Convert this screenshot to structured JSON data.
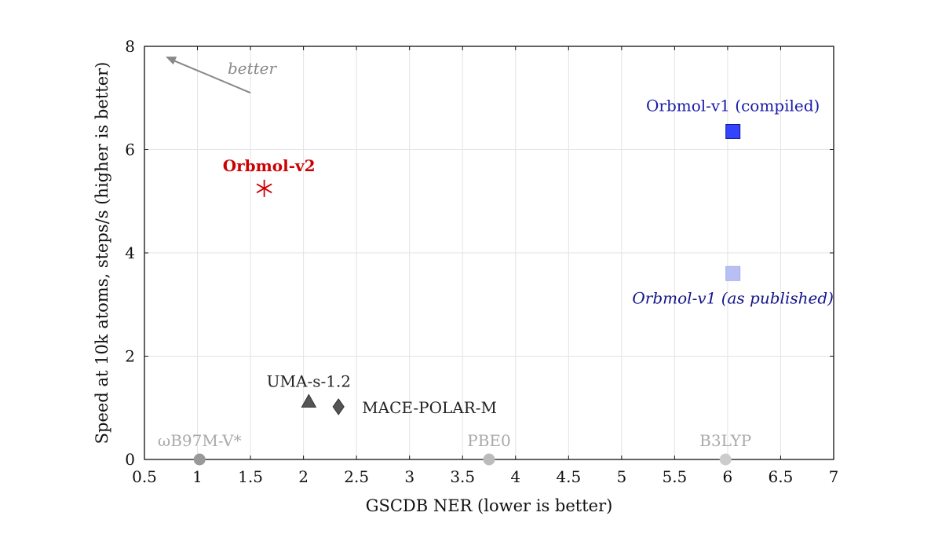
{
  "chart_data": {
    "type": "scatter",
    "title": "",
    "xlabel": "GSCDB NER (lower is better)",
    "ylabel": "Speed at 10k atoms, steps/s (higher is better)",
    "xlim": [
      0.5,
      7
    ],
    "ylim": [
      0,
      8
    ],
    "xticks": [
      0.5,
      1,
      1.5,
      2,
      2.5,
      3,
      3.5,
      4,
      4.5,
      5,
      5.5,
      6,
      6.5,
      7
    ],
    "yticks": [
      0,
      2,
      4,
      6,
      8
    ],
    "grid": true,
    "annotation": {
      "text": "better",
      "from": [
        1.5,
        7.1
      ],
      "to": [
        0.7,
        7.8
      ],
      "color": "#888888"
    },
    "points": [
      {
        "label": "Orbmol-v2",
        "x": 1.63,
        "y": 5.25,
        "marker": "asterisk",
        "color": "#cc0000",
        "label_color": "#cc0000",
        "label_style": "bold"
      },
      {
        "label": "Orbmol-v1 (compiled)",
        "x": 6.05,
        "y": 6.35,
        "marker": "square",
        "color": "#3344ff",
        "label_color": "#1a1aa8",
        "label_style": "normal"
      },
      {
        "label": "Orbmol-v1 (as published)",
        "x": 6.05,
        "y": 3.6,
        "marker": "square",
        "color": "#b8bff5",
        "label_color": "#14148a",
        "label_style": "italic"
      },
      {
        "label": "UMA-s-1.2",
        "x": 2.05,
        "y": 1.12,
        "marker": "triangle",
        "color": "#555555",
        "label_color": "#222222",
        "label_style": "normal"
      },
      {
        "label": "MACE-POLAR-M",
        "x": 2.33,
        "y": 1.02,
        "marker": "diamond",
        "color": "#555555",
        "label_color": "#222222",
        "label_style": "normal"
      },
      {
        "label": "ωB97M-V*",
        "x": 1.02,
        "y": 0,
        "marker": "circle",
        "color": "#999999",
        "label_color": "#aaaaaa",
        "label_style": "normal"
      },
      {
        "label": "PBE0",
        "x": 3.75,
        "y": 0,
        "marker": "circle",
        "color": "#bbbbbb",
        "label_color": "#aaaaaa",
        "label_style": "normal"
      },
      {
        "label": "B3LYP",
        "x": 5.98,
        "y": 0,
        "marker": "circle",
        "color": "#cccccc",
        "label_color": "#aaaaaa",
        "label_style": "normal"
      }
    ]
  }
}
